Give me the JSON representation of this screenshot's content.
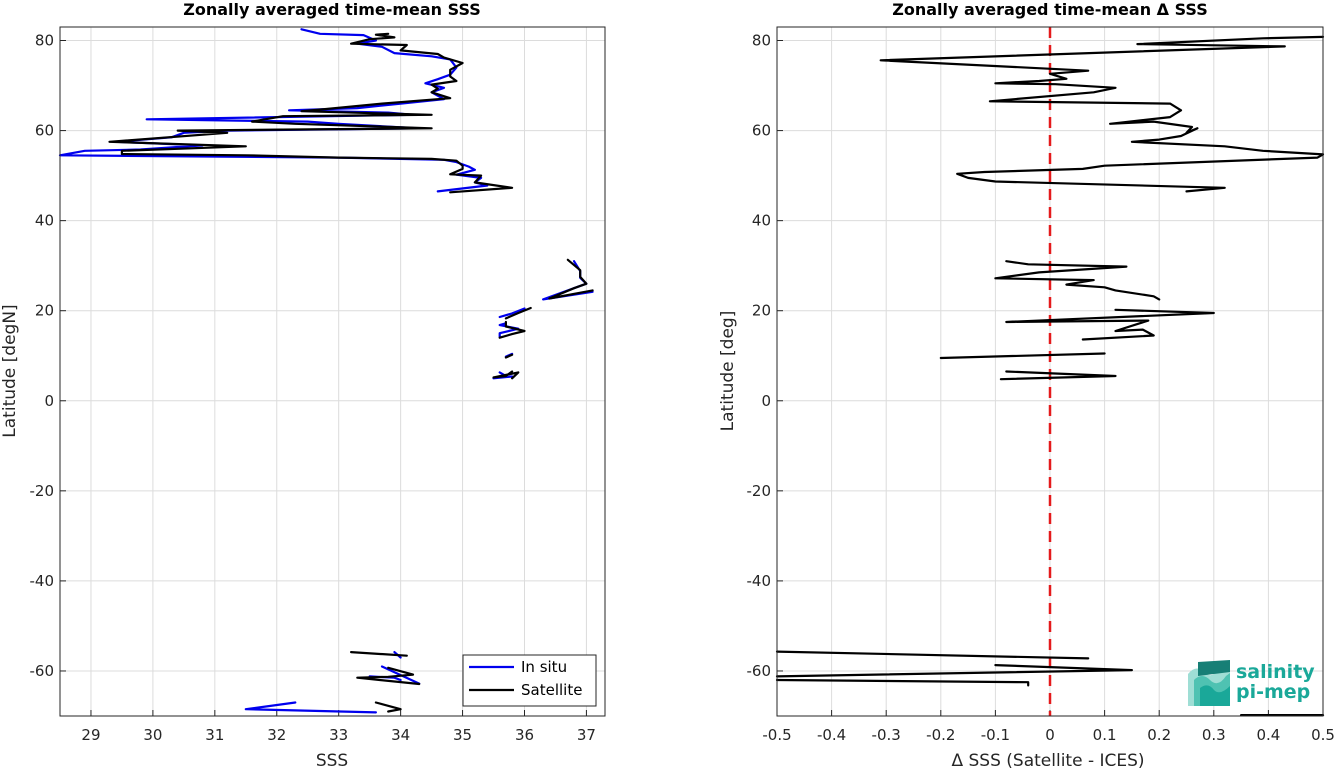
{
  "chart_data": [
    {
      "type": "line",
      "title": "Zonally averaged time-mean SSS",
      "xlabel": "SSS",
      "ylabel": "Latitude [degN]",
      "xlim": [
        28.5,
        37.3
      ],
      "ylim": [
        -70,
        83
      ],
      "xticks": [
        29,
        30,
        31,
        32,
        33,
        34,
        35,
        36,
        37
      ],
      "yticks": [
        -60,
        -40,
        -20,
        0,
        20,
        40,
        60,
        80
      ],
      "grid": true,
      "legend_position": "bottom-right",
      "series": [
        {
          "name": "In situ",
          "color": "#0000ee",
          "segments": [
            [
              [
                32.4,
                82.5
              ],
              [
                32.7,
                81.5
              ],
              [
                33.4,
                81.2
              ],
              [
                33.6,
                80.0
              ],
              [
                33.3,
                79.3
              ],
              [
                33.7,
                78.6
              ],
              [
                33.9,
                77.2
              ],
              [
                34.5,
                76.5
              ],
              [
                34.8,
                75.8
              ],
              [
                34.9,
                74.0
              ],
              [
                34.8,
                72.4
              ],
              [
                34.6,
                71.4
              ],
              [
                34.4,
                70.5
              ],
              [
                34.7,
                69.5
              ],
              [
                34.5,
                68.5
              ],
              [
                34.7,
                67.0
              ],
              [
                34.0,
                66.0
              ],
              [
                33.3,
                65.0
              ],
              [
                32.2,
                64.5
              ],
              [
                33.8,
                64.0
              ],
              [
                34.2,
                63.5
              ],
              [
                29.9,
                62.5
              ],
              [
                32.5,
                62.0
              ],
              [
                33.0,
                61.5
              ],
              [
                34.3,
                60.5
              ],
              [
                31.2,
                60.0
              ],
              [
                30.5,
                59.5
              ],
              [
                30.3,
                58.5
              ],
              [
                29.4,
                57.5
              ],
              [
                30.8,
                56.7
              ],
              [
                29.8,
                55.8
              ],
              [
                28.9,
                55.5
              ],
              [
                28.5,
                54.5
              ],
              [
                33.0,
                54.0
              ],
              [
                34.7,
                53.5
              ],
              [
                34.9,
                53.0
              ],
              [
                35.1,
                52.0
              ],
              [
                35.2,
                51.3
              ],
              [
                34.9,
                50.2
              ],
              [
                35.3,
                49.5
              ],
              [
                35.2,
                48.5
              ],
              [
                35.4,
                47.8
              ],
              [
                34.6,
                46.5
              ]
            ],
            [
              [
                36.8,
                31.0
              ],
              [
                36.9,
                28.8
              ],
              [
                36.9,
                27.3
              ],
              [
                37.0,
                26.0
              ],
              [
                36.8,
                25.0
              ],
              [
                36.3,
                22.5
              ],
              [
                37.1,
                24.2
              ]
            ],
            [
              [
                35.6,
                18.6
              ],
              [
                35.8,
                19.4
              ],
              [
                36.0,
                20.5
              ]
            ],
            [
              [
                35.7,
                17.2
              ],
              [
                35.6,
                16.8
              ],
              [
                35.9,
                16.0
              ],
              [
                35.6,
                15.0
              ],
              [
                35.6,
                14.2
              ]
            ],
            [
              [
                35.7,
                9.8
              ],
              [
                35.8,
                10.4
              ]
            ],
            [
              [
                35.6,
                6.3
              ],
              [
                35.7,
                5.5
              ],
              [
                35.5,
                5.0
              ],
              [
                35.8,
                5.4
              ]
            ],
            [
              [
                33.9,
                -55.8
              ],
              [
                34.0,
                -57.0
              ]
            ],
            [
              [
                33.7,
                -59.0
              ],
              [
                34.3,
                -62.8
              ]
            ],
            [
              [
                33.5,
                -61.2
              ],
              [
                33.9,
                -61.5
              ],
              [
                34.0,
                -62.0
              ]
            ],
            [
              [
                32.3,
                -67.0
              ],
              [
                31.5,
                -68.5
              ],
              [
                33.6,
                -69.2
              ]
            ]
          ]
        },
        {
          "name": "Satellite",
          "color": "#000000",
          "segments": [
            [
              [
                33.8,
                81.5
              ],
              [
                33.6,
                81.3
              ],
              [
                33.9,
                80.7
              ],
              [
                33.5,
                80.3
              ],
              [
                33.2,
                79.3
              ],
              [
                34.1,
                79.0
              ],
              [
                34.0,
                77.8
              ],
              [
                34.6,
                77.0
              ],
              [
                34.7,
                76.2
              ],
              [
                35.0,
                75.0
              ],
              [
                34.8,
                73.5
              ],
              [
                34.8,
                72.0
              ],
              [
                34.9,
                71.0
              ],
              [
                34.5,
                70.2
              ],
              [
                34.6,
                69.3
              ],
              [
                34.5,
                68.5
              ],
              [
                34.8,
                67.2
              ],
              [
                33.7,
                66.0
              ],
              [
                32.8,
                64.8
              ],
              [
                32.4,
                64.3
              ],
              [
                34.5,
                63.5
              ],
              [
                32.1,
                63.2
              ],
              [
                31.6,
                62.0
              ],
              [
                32.3,
                61.5
              ],
              [
                34.5,
                60.5
              ],
              [
                30.4,
                60.0
              ],
              [
                31.2,
                59.5
              ],
              [
                29.3,
                57.5
              ],
              [
                31.5,
                56.5
              ],
              [
                29.5,
                55.5
              ],
              [
                29.5,
                54.8
              ],
              [
                31.5,
                54.5
              ],
              [
                33.0,
                54.0
              ],
              [
                34.5,
                53.7
              ],
              [
                34.9,
                53.3
              ],
              [
                35.0,
                52.2
              ],
              [
                35.0,
                51.5
              ],
              [
                34.8,
                50.3
              ],
              [
                35.3,
                50.0
              ],
              [
                35.2,
                48.5
              ],
              [
                35.8,
                47.3
              ],
              [
                34.8,
                46.3
              ]
            ],
            [
              [
                36.7,
                31.3
              ],
              [
                36.9,
                29.0
              ],
              [
                36.9,
                27.5
              ],
              [
                37.0,
                26.0
              ],
              [
                36.8,
                25.0
              ],
              [
                36.4,
                22.7
              ],
              [
                37.1,
                24.5
              ]
            ],
            [
              [
                35.7,
                18.3
              ],
              [
                35.9,
                19.5
              ],
              [
                36.1,
                20.6
              ]
            ],
            [
              [
                35.7,
                17.5
              ],
              [
                35.7,
                16.5
              ],
              [
                36.0,
                15.5
              ],
              [
                35.8,
                14.8
              ],
              [
                35.6,
                14.0
              ]
            ],
            [
              [
                35.7,
                9.6
              ],
              [
                35.8,
                10.2
              ]
            ],
            [
              [
                35.8,
                6.5
              ],
              [
                35.7,
                5.5
              ],
              [
                35.5,
                5.2
              ],
              [
                35.9,
                6.3
              ],
              [
                35.8,
                5.0
              ]
            ],
            [
              [
                33.2,
                -55.8
              ],
              [
                34.1,
                -56.6
              ]
            ],
            [
              [
                33.8,
                -59.3
              ],
              [
                34.2,
                -60.8
              ],
              [
                33.8,
                -61.3
              ],
              [
                33.3,
                -61.5
              ],
              [
                34.3,
                -62.9
              ]
            ],
            [
              [
                33.6,
                -67.0
              ],
              [
                34.0,
                -68.5
              ],
              [
                33.8,
                -69.0
              ]
            ]
          ]
        }
      ]
    },
    {
      "type": "line",
      "title": "Zonally averaged time-mean Δ SSS",
      "xlabel": "Δ SSS (Satellite - ICES)",
      "ylabel": "Latitude [deg]",
      "xlim": [
        -0.5,
        0.5
      ],
      "ylim": [
        -70,
        83
      ],
      "xticks": [
        -0.5,
        -0.4,
        -0.3,
        -0.2,
        -0.1,
        0,
        0.1,
        0.2,
        0.3,
        0.4,
        0.5
      ],
      "yticks": [
        -60,
        -40,
        -20,
        0,
        20,
        40,
        60,
        80
      ],
      "grid": true,
      "reference_line": {
        "x": 0,
        "color": "#e41a1c",
        "style": "dashed"
      },
      "series": [
        {
          "color": "#000000",
          "segments": [
            [
              [
                0.5,
                80.8
              ],
              [
                0.39,
                80.5
              ],
              [
                0.16,
                79.2
              ],
              [
                0.43,
                78.7
              ],
              [
                -0.31,
                75.6
              ],
              [
                0.07,
                73.3
              ],
              [
                0.0,
                72.6
              ],
              [
                0.03,
                71.5
              ],
              [
                -0.02,
                71.0
              ],
              [
                -0.1,
                70.5
              ],
              [
                0.01,
                70.3
              ],
              [
                0.12,
                69.5
              ],
              [
                0.08,
                68.5
              ],
              [
                -0.11,
                66.5
              ],
              [
                0.22,
                66.0
              ],
              [
                0.24,
                64.5
              ],
              [
                0.22,
                63.0
              ],
              [
                0.11,
                61.5
              ],
              [
                0.19,
                62.0
              ],
              [
                0.26,
                60.8
              ],
              [
                0.25,
                59.5
              ],
              [
                0.27,
                60.5
              ],
              [
                0.24,
                58.8
              ],
              [
                0.2,
                58.0
              ],
              [
                0.15,
                57.5
              ],
              [
                0.32,
                56.5
              ],
              [
                0.39,
                55.5
              ],
              [
                0.5,
                54.7
              ],
              [
                0.49,
                54.0
              ],
              [
                0.1,
                52.2
              ],
              [
                0.06,
                51.5
              ],
              [
                -0.12,
                50.8
              ],
              [
                -0.17,
                50.4
              ],
              [
                -0.15,
                49.5
              ],
              [
                -0.1,
                48.7
              ],
              [
                0.32,
                47.3
              ],
              [
                0.25,
                46.5
              ]
            ],
            [
              [
                -0.08,
                31.0
              ],
              [
                -0.04,
                30.3
              ],
              [
                0.14,
                29.8
              ],
              [
                -0.02,
                28.5
              ],
              [
                -0.1,
                27.2
              ],
              [
                0.08,
                26.8
              ],
              [
                0.03,
                25.8
              ],
              [
                0.1,
                25.2
              ],
              [
                0.12,
                24.5
              ],
              [
                0.19,
                23.2
              ],
              [
                0.2,
                22.5
              ]
            ],
            [
              [
                0.12,
                20.2
              ],
              [
                0.3,
                19.5
              ],
              [
                -0.08,
                17.5
              ],
              [
                0.18,
                17.8
              ],
              [
                0.12,
                15.5
              ],
              [
                0.17,
                15.8
              ],
              [
                0.19,
                14.5
              ],
              [
                0.06,
                13.6
              ]
            ],
            [
              [
                0.1,
                10.5
              ],
              [
                -0.2,
                9.5
              ]
            ],
            [
              [
                -0.08,
                6.5
              ],
              [
                0.12,
                5.5
              ],
              [
                -0.09,
                4.8
              ]
            ],
            [
              [
                -0.5,
                -55.7
              ],
              [
                0.07,
                -57.2
              ]
            ],
            [
              [
                -0.1,
                -58.7
              ],
              [
                0.15,
                -59.8
              ],
              [
                -0.5,
                -61.2
              ]
            ],
            [
              [
                -0.5,
                -62.0
              ],
              [
                -0.04,
                -62.5
              ],
              [
                -0.04,
                -63.2
              ]
            ],
            [
              [
                0.35,
                -69.8
              ],
              [
                0.5,
                -69.8
              ]
            ]
          ]
        }
      ]
    }
  ],
  "legend": {
    "entries": [
      {
        "name": "In situ",
        "color": "#0000ee"
      },
      {
        "name": "Satellite",
        "color": "#000000"
      }
    ]
  },
  "logo": {
    "line1": "salinity",
    "line2": "pi-mep",
    "color": "#1aa899"
  }
}
